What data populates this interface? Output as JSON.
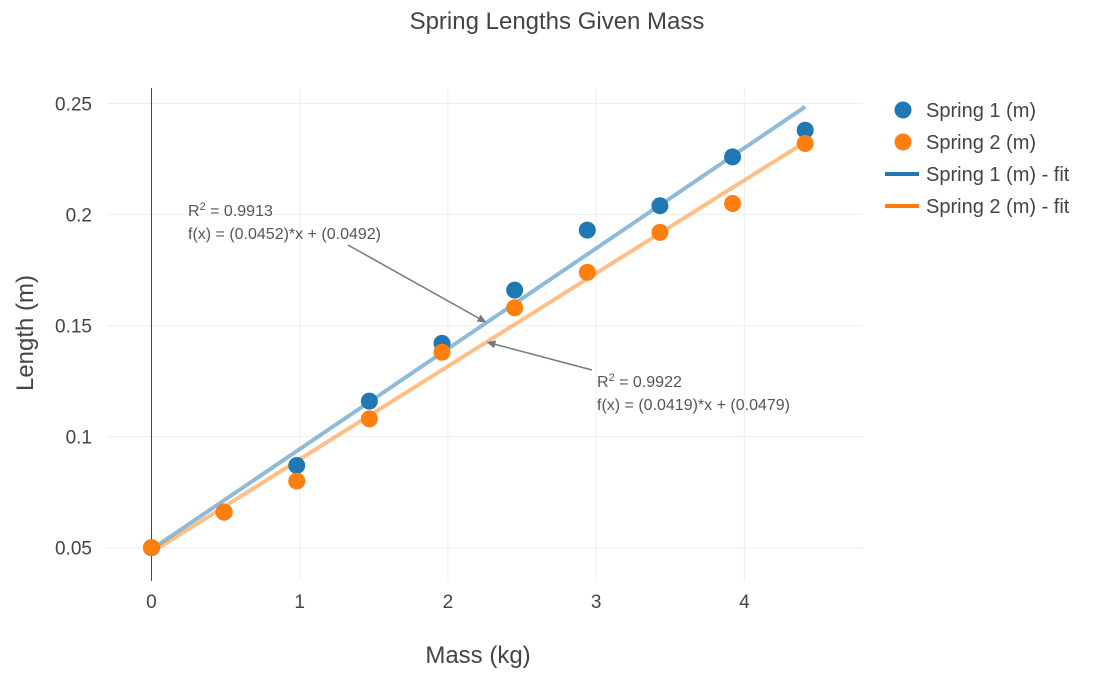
{
  "chart_data": {
    "type": "scatter",
    "title": "Spring Lengths Given Mass",
    "xlabel": "Mass (kg)",
    "ylabel": "Length (m)",
    "xlim": [
      -0.3,
      4.8
    ],
    "ylim": [
      0.035,
      0.257
    ],
    "x_ticks": [
      0,
      1,
      2,
      3,
      4
    ],
    "x_tick_labels": [
      "0",
      "1",
      "2",
      "3",
      "4"
    ],
    "y_ticks": [
      0.05,
      0.1,
      0.15,
      0.2,
      0.25
    ],
    "y_tick_labels": [
      "0.05",
      "0.1",
      "0.15",
      "0.2",
      "0.25"
    ],
    "grid": true,
    "legend_position": "right",
    "x": [
      0,
      0.49,
      0.98,
      1.47,
      1.96,
      2.45,
      2.94,
      3.43,
      3.92,
      4.41
    ],
    "series": [
      {
        "name": "Spring 1 (m)",
        "kind": "markers",
        "color": "#1f77b4",
        "values": [
          0.05,
          0.066,
          0.087,
          0.116,
          0.142,
          0.166,
          0.193,
          0.204,
          0.226,
          0.238
        ]
      },
      {
        "name": "Spring 2 (m)",
        "kind": "markers",
        "color": "#ff7f0e",
        "values": [
          0.05,
          0.066,
          0.08,
          0.108,
          0.138,
          0.158,
          0.174,
          0.192,
          0.205,
          0.232
        ]
      }
    ],
    "fits": [
      {
        "name": "Spring 1 (m) - fit",
        "color": "#1f77b4",
        "slope": 0.0452,
        "intercept": 0.0492,
        "x_range": [
          0,
          4.41
        ]
      },
      {
        "name": "Spring 2 (m) - fit",
        "color": "#ff7f0e",
        "slope": 0.0419,
        "intercept": 0.0479,
        "x_range": [
          0,
          4.41
        ]
      }
    ],
    "annotations": [
      {
        "r2_label": "R",
        "r2_exponent": "2",
        "r2_value": " = 0.9913",
        "equation": "f(x) = (0.0452)*x + (0.0492)",
        "arrow_to": [
          2.26,
          0.1514
        ]
      },
      {
        "r2_label": "R",
        "r2_exponent": "2",
        "r2_value": " = 0.9922",
        "equation": "f(x) = (0.0419)*x + (0.0479)",
        "arrow_to": [
          2.26,
          0.1426
        ]
      }
    ]
  }
}
